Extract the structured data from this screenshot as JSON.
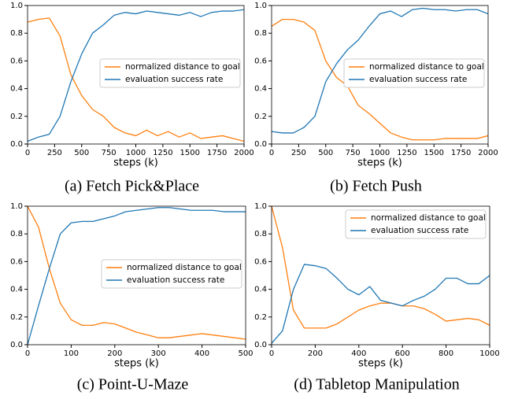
{
  "chart_data": [
    {
      "type": "line",
      "caption": "(a) Fetch Pick&Place",
      "xlabel": "steps (k)",
      "x": [
        0,
        100,
        200,
        300,
        400,
        500,
        600,
        700,
        800,
        900,
        1000,
        1100,
        1200,
        1300,
        1400,
        1500,
        1600,
        1700,
        1800,
        1900,
        2000
      ],
      "series": [
        {
          "name": "normalized distance to goal",
          "color": "#ff7f0e",
          "values": [
            0.88,
            0.9,
            0.91,
            0.78,
            0.5,
            0.35,
            0.25,
            0.2,
            0.12,
            0.08,
            0.06,
            0.1,
            0.06,
            0.09,
            0.05,
            0.08,
            0.04,
            0.05,
            0.06,
            0.04,
            0.02
          ]
        },
        {
          "name": "evaluation success rate",
          "color": "#1f77b4",
          "values": [
            0.02,
            0.05,
            0.07,
            0.2,
            0.45,
            0.65,
            0.8,
            0.86,
            0.93,
            0.95,
            0.94,
            0.96,
            0.95,
            0.94,
            0.93,
            0.95,
            0.92,
            0.95,
            0.96,
            0.96,
            0.97
          ]
        }
      ],
      "xlim": [
        0,
        2000
      ],
      "xticks": [
        0,
        250,
        500,
        750,
        1000,
        1250,
        1500,
        1750,
        2000
      ],
      "ylim": [
        0,
        1
      ],
      "yticks": [
        {
          "value": 0,
          "label": "0.0"
        },
        0.2,
        0.4,
        0.6,
        0.8,
        {
          "value": 1,
          "label": "1.0"
        }
      ],
      "legend": "center right"
    },
    {
      "type": "line",
      "caption": "(b) Fetch Push",
      "xlabel": "steps (k)",
      "x": [
        0,
        100,
        200,
        300,
        400,
        500,
        600,
        700,
        800,
        900,
        1000,
        1100,
        1200,
        1300,
        1400,
        1500,
        1600,
        1700,
        1800,
        1900,
        2000
      ],
      "series": [
        {
          "name": "normalized distance to goal",
          "color": "#ff7f0e",
          "values": [
            0.85,
            0.9,
            0.9,
            0.88,
            0.82,
            0.6,
            0.48,
            0.42,
            0.28,
            0.22,
            0.15,
            0.08,
            0.05,
            0.03,
            0.03,
            0.03,
            0.04,
            0.04,
            0.04,
            0.04,
            0.06
          ]
        },
        {
          "name": "evaluation success rate",
          "color": "#1f77b4",
          "values": [
            0.09,
            0.08,
            0.08,
            0.12,
            0.2,
            0.45,
            0.58,
            0.68,
            0.75,
            0.85,
            0.94,
            0.96,
            0.92,
            0.97,
            0.98,
            0.97,
            0.97,
            0.96,
            0.97,
            0.97,
            0.94
          ]
        }
      ],
      "xlim": [
        0,
        2000
      ],
      "xticks": [
        0,
        250,
        500,
        750,
        1000,
        1250,
        1500,
        1750,
        2000
      ],
      "ylim": [
        0,
        1
      ],
      "yticks": [
        {
          "value": 0,
          "label": "0.0"
        },
        0.2,
        0.4,
        0.6,
        0.8,
        {
          "value": 1,
          "label": "1.0"
        }
      ],
      "legend": "center right"
    },
    {
      "type": "line",
      "caption": "(c) Point-U-Maze",
      "xlabel": "steps (k)",
      "x": [
        0,
        25,
        50,
        75,
        100,
        125,
        150,
        175,
        200,
        225,
        250,
        275,
        300,
        325,
        350,
        375,
        400,
        425,
        450,
        475,
        500
      ],
      "series": [
        {
          "name": "normalized distance to goal",
          "color": "#ff7f0e",
          "values": [
            1.0,
            0.85,
            0.55,
            0.3,
            0.18,
            0.14,
            0.14,
            0.16,
            0.15,
            0.12,
            0.09,
            0.07,
            0.05,
            0.05,
            0.06,
            0.07,
            0.08,
            0.07,
            0.06,
            0.05,
            0.04
          ]
        },
        {
          "name": "evaluation success rate",
          "color": "#1f77b4",
          "values": [
            0.0,
            0.28,
            0.55,
            0.8,
            0.88,
            0.89,
            0.89,
            0.91,
            0.93,
            0.96,
            0.97,
            0.98,
            0.99,
            0.99,
            0.98,
            0.97,
            0.97,
            0.97,
            0.96,
            0.96,
            0.96
          ]
        }
      ],
      "xlim": [
        0,
        500
      ],
      "xticks": [
        0,
        100,
        200,
        300,
        400,
        500
      ],
      "ylim": [
        0,
        1
      ],
      "yticks": [
        {
          "value": 0,
          "label": "0.0"
        },
        0.2,
        0.4,
        0.6,
        0.8,
        {
          "value": 1,
          "label": "1.0"
        }
      ],
      "legend": "center right"
    },
    {
      "type": "line",
      "caption": "(d) Tabletop Manipulation",
      "xlabel": "steps (k)",
      "x": [
        0,
        50,
        100,
        150,
        200,
        250,
        300,
        350,
        400,
        450,
        500,
        550,
        600,
        650,
        700,
        750,
        800,
        850,
        900,
        950,
        1000
      ],
      "series": [
        {
          "name": "normalized distance to goal",
          "color": "#ff7f0e",
          "values": [
            1.0,
            0.7,
            0.25,
            0.12,
            0.12,
            0.12,
            0.15,
            0.2,
            0.25,
            0.28,
            0.3,
            0.3,
            0.28,
            0.28,
            0.26,
            0.22,
            0.17,
            0.18,
            0.19,
            0.18,
            0.14
          ]
        },
        {
          "name": "evaluation success rate",
          "color": "#1f77b4",
          "values": [
            0.01,
            0.1,
            0.4,
            0.58,
            0.57,
            0.55,
            0.48,
            0.4,
            0.36,
            0.42,
            0.32,
            0.3,
            0.28,
            0.32,
            0.35,
            0.4,
            0.48,
            0.48,
            0.44,
            0.44,
            0.5
          ]
        }
      ],
      "xlim": [
        0,
        1000
      ],
      "xticks": [
        0,
        200,
        400,
        600,
        800,
        1000
      ],
      "ylim": [
        0,
        1
      ],
      "yticks": [
        {
          "value": 0,
          "label": "0.0"
        },
        0.2,
        0.4,
        0.6,
        0.8,
        {
          "value": 1,
          "label": "1.0"
        }
      ],
      "legend": "upper right"
    }
  ]
}
